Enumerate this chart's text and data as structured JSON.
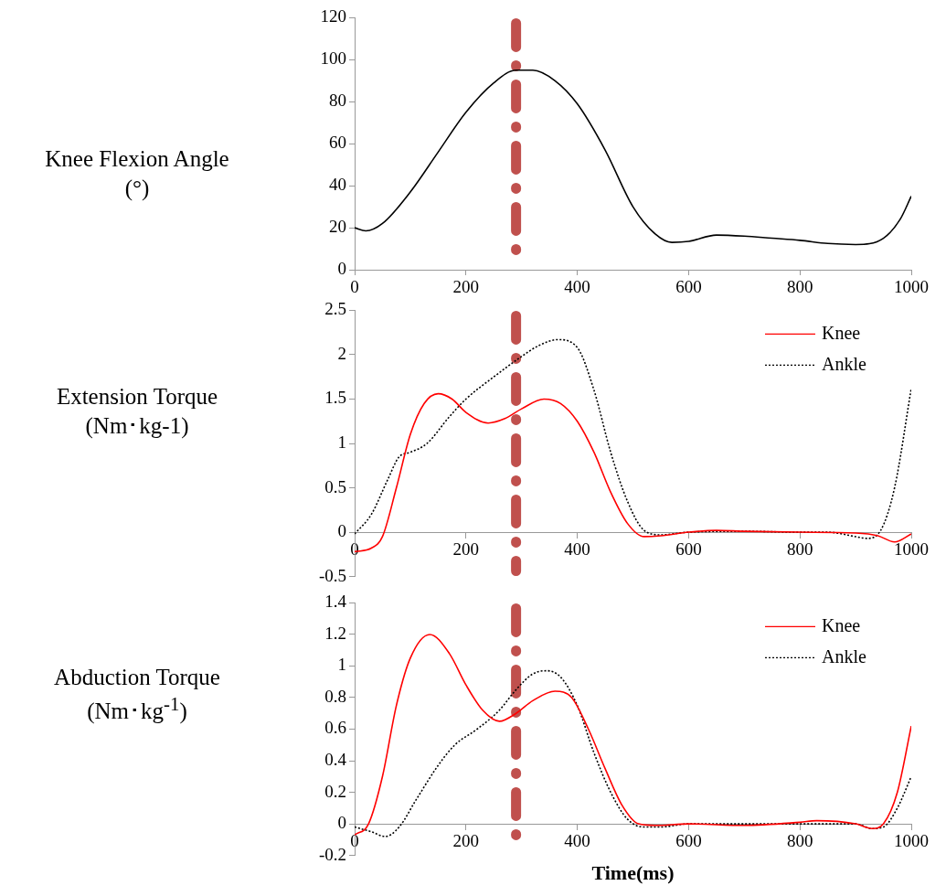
{
  "chart_data": [
    {
      "type": "line",
      "ylabel": "Knee Flexion Angle (°)",
      "xlim": [
        0,
        1000
      ],
      "xticks": [
        0,
        200,
        400,
        600,
        800,
        1000
      ],
      "ylim": [
        0,
        120
      ],
      "yticks": [
        0,
        20,
        40,
        60,
        80,
        100,
        120
      ],
      "grid": false,
      "marker": "none",
      "ref_lines": [
        {
          "axis": "x",
          "value": 290,
          "color": "#c0504d",
          "line_style": "dashed"
        }
      ],
      "series": [
        {
          "color": "#000000",
          "line_style": "solid",
          "x": [
            0,
            20,
            50,
            100,
            150,
            200,
            250,
            290,
            320,
            360,
            400,
            450,
            500,
            540,
            570,
            600,
            650,
            700,
            750,
            800,
            850,
            900,
            950,
            980,
            1000
          ],
          "values": [
            20,
            18.5,
            22,
            37,
            56,
            75,
            89,
            95,
            95,
            90,
            79,
            57,
            30,
            17,
            13,
            13.5,
            16.5,
            16,
            15,
            14,
            12.5,
            12,
            15,
            24,
            35
          ]
        }
      ]
    },
    {
      "type": "line",
      "ylabel": "Extension Torque (Nm･kg-1)",
      "xlim": [
        0,
        1000
      ],
      "xticks": [
        0,
        200,
        400,
        600,
        800,
        1000
      ],
      "ylim": [
        -0.5,
        2.5
      ],
      "yticks": [
        {
          "value": -0.5,
          "label": "-0.5"
        },
        0,
        {
          "value": 0.5,
          "label": "0.5"
        },
        1,
        {
          "value": 1.5,
          "label": "1.5"
        },
        2,
        {
          "value": 2.5,
          "label": "2.5"
        }
      ],
      "grid": false,
      "marker": "none",
      "legend": "top right",
      "ref_lines": [
        {
          "axis": "x",
          "value": 290,
          "color": "#c0504d",
          "line_style": "dashed"
        }
      ],
      "series": [
        {
          "name": "Knee",
          "color": "#ff0000",
          "line_style": "solid",
          "x": [
            0,
            30,
            50,
            75,
            100,
            125,
            150,
            175,
            200,
            240,
            270,
            300,
            340,
            370,
            400,
            430,
            460,
            490,
            520,
            550,
            600,
            650,
            700,
            800,
            900,
            940,
            970,
            1000
          ],
          "values": [
            -0.22,
            -0.18,
            -0.05,
            0.5,
            1.1,
            1.45,
            1.56,
            1.5,
            1.35,
            1.23,
            1.28,
            1.39,
            1.5,
            1.45,
            1.25,
            0.9,
            0.45,
            0.1,
            -0.05,
            -0.04,
            0,
            0.02,
            0.01,
            0,
            -0.01,
            -0.04,
            -0.11,
            -0.02
          ]
        },
        {
          "name": "Ankle",
          "color": "#000000",
          "line_style": "dotted",
          "x": [
            0,
            30,
            60,
            80,
            100,
            130,
            170,
            200,
            250,
            300,
            330,
            365,
            400,
            430,
            460,
            490,
            520,
            550,
            600,
            700,
            800,
            850,
            900,
            920,
            945,
            970,
            1000
          ],
          "values": [
            -0.02,
            0.2,
            0.6,
            0.85,
            0.9,
            1.0,
            1.3,
            1.5,
            1.75,
            1.98,
            2.1,
            2.17,
            2.08,
            1.6,
            0.9,
            0.35,
            0.02,
            -0.03,
            0,
            0.01,
            0,
            0,
            -0.05,
            -0.07,
            0.02,
            0.5,
            1.62
          ]
        }
      ]
    },
    {
      "type": "line",
      "ylabel": "Abduction Torque (Nm･kg$^{-1}$)",
      "xlabel": "Time(ms)",
      "xlim": [
        0,
        1000
      ],
      "xticks": [
        0,
        200,
        400,
        600,
        800,
        1000
      ],
      "ylim": [
        -0.2,
        1.4
      ],
      "yticks": [
        {
          "value": -0.2,
          "label": "-0.2"
        },
        0,
        {
          "value": 0.2,
          "label": "0.2"
        },
        {
          "value": 0.4,
          "label": "0.4"
        },
        {
          "value": 0.6,
          "label": "0.6"
        },
        {
          "value": 0.8,
          "label": "0.8"
        },
        1,
        {
          "value": 1.2,
          "label": "1.2"
        },
        {
          "value": 1.4,
          "label": "1.4"
        }
      ],
      "grid": false,
      "marker": "none",
      "legend": "top right",
      "ref_lines": [
        {
          "axis": "x",
          "value": 290,
          "color": "#c0504d",
          "line_style": "dashed"
        }
      ],
      "series": [
        {
          "name": "Knee",
          "color": "#ff0000",
          "line_style": "solid",
          "x": [
            0,
            25,
            50,
            75,
            100,
            135,
            170,
            200,
            230,
            260,
            290,
            320,
            360,
            390,
            420,
            450,
            480,
            510,
            540,
            600,
            700,
            800,
            830,
            900,
            930,
            950,
            975,
            1000
          ],
          "values": [
            -0.07,
            0,
            0.3,
            0.75,
            1.05,
            1.2,
            1.08,
            0.88,
            0.72,
            0.65,
            0.7,
            0.78,
            0.84,
            0.8,
            0.6,
            0.35,
            0.12,
            0,
            -0.01,
            0,
            -0.01,
            0.01,
            0.02,
            0,
            -0.03,
            0,
            0.2,
            0.62
          ]
        },
        {
          "name": "Ankle",
          "color": "#000000",
          "line_style": "dotted",
          "x": [
            0,
            30,
            55,
            80,
            110,
            150,
            180,
            220,
            260,
            290,
            320,
            345,
            370,
            400,
            430,
            460,
            490,
            520,
            550,
            600,
            700,
            800,
            900,
            930,
            950,
            975,
            1000
          ],
          "values": [
            -0.02,
            -0.05,
            -0.08,
            -0.02,
            0.15,
            0.37,
            0.5,
            0.6,
            0.72,
            0.85,
            0.95,
            0.97,
            0.93,
            0.75,
            0.45,
            0.2,
            0.03,
            -0.02,
            -0.02,
            0,
            0,
            0,
            0,
            -0.03,
            -0.02,
            0.1,
            0.3
          ]
        }
      ]
    }
  ]
}
